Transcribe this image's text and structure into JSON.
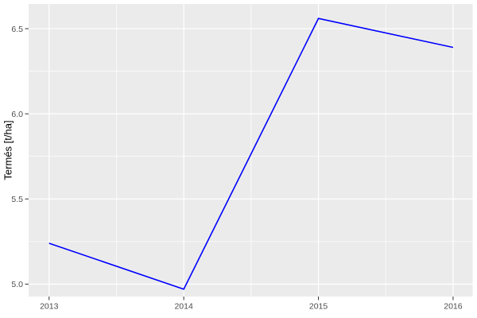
{
  "chart_data": {
    "type": "line",
    "title": "",
    "xlabel": "",
    "ylabel": "Termés [t/ha]",
    "x": [
      2013,
      2014,
      2015,
      2016
    ],
    "series": [
      {
        "name": "Termés",
        "values": [
          5.24,
          4.97,
          6.56,
          6.39
        ]
      }
    ],
    "x_ticks": {
      "values": [
        2013,
        2014,
        2015,
        2016
      ],
      "labels": [
        "2013",
        "2014",
        "2015",
        "2016"
      ]
    },
    "y_ticks": {
      "values": [
        5.0,
        5.5,
        6.0,
        6.5
      ],
      "labels": [
        "5.0",
        "5.5",
        "6.0",
        "6.5"
      ]
    },
    "x_minor": [
      2013.5,
      2014.5,
      2015.5
    ],
    "y_minor": [
      5.25,
      5.75,
      6.25
    ],
    "xlim": [
      2012.848,
      2016.145
    ],
    "ylim": [
      4.927,
      6.645
    ],
    "grid": true,
    "legend": "none",
    "colors": {
      "line": "#0000FF",
      "panel_background": "#EBEBEB",
      "grid": "#FFFFFF",
      "tick_mark": "#333333",
      "tick_label": "#4D4D4D",
      "axis_title": "#000000",
      "figure_background": "#FFFFFF"
    }
  }
}
